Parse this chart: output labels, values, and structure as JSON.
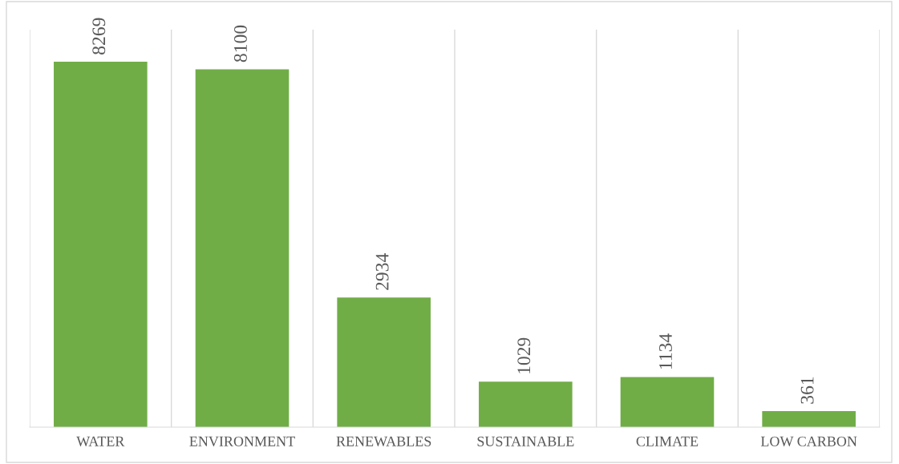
{
  "chart_data": {
    "type": "bar",
    "categories": [
      "WATER",
      "ENVIRONMENT",
      "RENEWABLES",
      "SUSTAINABLE",
      "CLIMATE",
      "LOW CARBON"
    ],
    "values": [
      8269,
      8100,
      2934,
      1029,
      1134,
      361
    ],
    "color": "#70ad47",
    "data_labels": true,
    "grid": "x",
    "legend": false
  }
}
